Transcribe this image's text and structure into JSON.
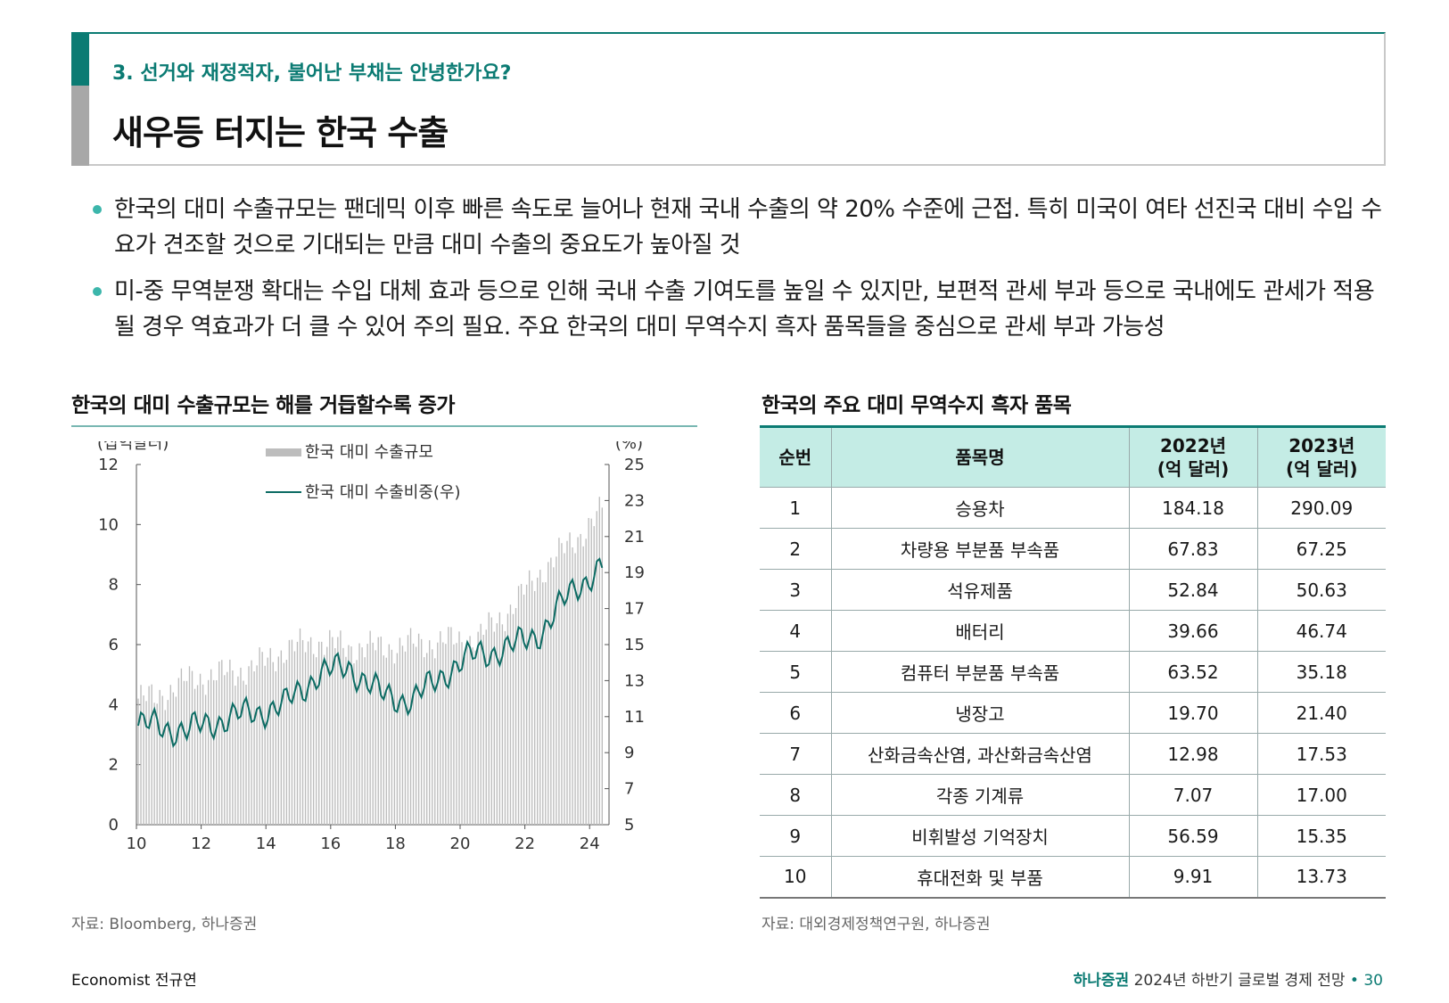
{
  "header": {
    "subtitle": "3. 선거와 재정적자, 불어난 부채는 안녕한가요?",
    "title": "새우등 터지는 한국 수출"
  },
  "bullets": [
    "한국의 대미 수출규모는 팬데믹 이후 빠른 속도로 늘어나 현재 국내 수출의 약 20% 수준에 근접. 특히 미국이 여타 선진국 대비 수입 수요가 견조할 것으로 기대되는 만큼 대미 수출의 중요도가 높아질 것",
    "미-중 무역분쟁 확대는 수입 대체 효과 등으로 인해 국내 수출 기여도를 높일 수 있지만, 보편적 관세 부과 등으로 국내에도 관세가 적용될 경우 역효과가 더 클 수 있어 주의 필요. 주요 한국의 대미 무역수지 흑자 품목들을 중심으로 관세 부과 가능성"
  ],
  "chart_section": {
    "title": "한국의 대미 수출규모는 해를 거듭할수록 증가",
    "source": "자료: Bloomberg, 하나증권"
  },
  "chart_data": {
    "type": "bar+line",
    "title": "한국의 대미 수출규모는 해를 거듭할수록 증가",
    "ylabel_left": "(십억달러)",
    "ylabel_right": "(%)",
    "ylim_left": [
      0,
      12
    ],
    "ylim_right": [
      5,
      25
    ],
    "yticks_left": [
      "0",
      "2",
      "4",
      "6",
      "8",
      "10",
      "12"
    ],
    "yticks_right": [
      "5",
      "7",
      "9",
      "11",
      "13",
      "15",
      "17",
      "19",
      "21",
      "23",
      "25"
    ],
    "xticks": [
      "10",
      "12",
      "14",
      "16",
      "18",
      "20",
      "22",
      "24"
    ],
    "x_start": "2010-01",
    "x_end": "2024-05",
    "series": [
      {
        "name": "한국 대미 수출규모",
        "type": "bar",
        "axis": "left",
        "color": "#bdbdbd",
        "annual_level": [
          {
            "year": 2010,
            "value": 4.2
          },
          {
            "year": 2011,
            "value": 4.8
          },
          {
            "year": 2012,
            "value": 5.0
          },
          {
            "year": 2013,
            "value": 5.2
          },
          {
            "year": 2014,
            "value": 5.8
          },
          {
            "year": 2015,
            "value": 6.1
          },
          {
            "year": 2016,
            "value": 5.9
          },
          {
            "year": 2017,
            "value": 5.9
          },
          {
            "year": 2018,
            "value": 6.0
          },
          {
            "year": 2019,
            "value": 6.1
          },
          {
            "year": 2020,
            "value": 6.2
          },
          {
            "year": 2021,
            "value": 7.2
          },
          {
            "year": 2022,
            "value": 8.5
          },
          {
            "year": 2023,
            "value": 9.5
          },
          {
            "year": 2024,
            "value": 10.6
          }
        ]
      },
      {
        "name": "한국 대미 수출비중(우)",
        "type": "line",
        "axis": "right",
        "color": "#0b6b63",
        "annual_level": [
          {
            "year": 2010,
            "value": 10.5
          },
          {
            "year": 2011,
            "value": 10.2
          },
          {
            "year": 2012,
            "value": 10.8
          },
          {
            "year": 2013,
            "value": 11.2
          },
          {
            "year": 2014,
            "value": 11.6
          },
          {
            "year": 2015,
            "value": 13.3
          },
          {
            "year": 2016,
            "value": 13.8
          },
          {
            "year": 2017,
            "value": 12.2
          },
          {
            "year": 2018,
            "value": 11.9
          },
          {
            "year": 2019,
            "value": 13.5
          },
          {
            "year": 2020,
            "value": 14.5
          },
          {
            "year": 2021,
            "value": 14.8
          },
          {
            "year": 2022,
            "value": 15.8
          },
          {
            "year": 2023,
            "value": 18.2
          },
          {
            "year": 2024,
            "value": 19.5
          }
        ]
      }
    ]
  },
  "table_section": {
    "title": "한국의 주요 대미 무역수지 흑자 품목",
    "source": "자료: 대외경제정책연구원, 하나증권",
    "headers": [
      "순번",
      "품목명",
      "2022년\n(억 달러)",
      "2023년\n(억 달러)"
    ],
    "rows": [
      [
        "1",
        "승용차",
        "184.18",
        "290.09"
      ],
      [
        "2",
        "차량용 부분품 부속품",
        "67.83",
        "67.25"
      ],
      [
        "3",
        "석유제품",
        "52.84",
        "50.63"
      ],
      [
        "4",
        "배터리",
        "39.66",
        "46.74"
      ],
      [
        "5",
        "컴퓨터 부분품 부속품",
        "63.52",
        "35.18"
      ],
      [
        "6",
        "냉장고",
        "19.70",
        "21.40"
      ],
      [
        "7",
        "산화금속산염, 과산화금속산염",
        "12.98",
        "17.53"
      ],
      [
        "8",
        "각종 기계류",
        "7.07",
        "17.00"
      ],
      [
        "9",
        "비휘발성 기억장치",
        "56.59",
        "15.35"
      ],
      [
        "10",
        "휴대전화 및 부품",
        "9.91",
        "13.73"
      ]
    ]
  },
  "footer": {
    "left": "Economist 전규연",
    "brand": "하나증권",
    "report": "2024년 하반기 글로벌 경제 전망",
    "separator": "•",
    "page": "30"
  }
}
